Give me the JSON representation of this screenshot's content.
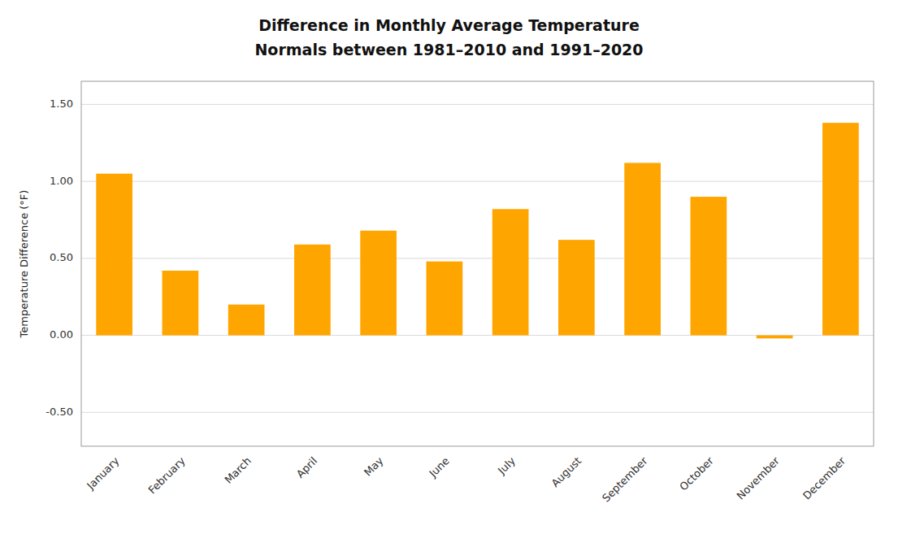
{
  "chart_data": {
    "type": "bar",
    "title": "Difference in Monthly Average Temperature",
    "subtitle": "Normals between 1981–2010 and 1991–2020",
    "y_label": "Temperature Difference (°F)",
    "categories": [
      "January",
      "February",
      "March",
      "April",
      "May",
      "June",
      "July",
      "August",
      "September",
      "October",
      "November",
      "December"
    ],
    "values": [
      1.05,
      0.42,
      0.2,
      0.59,
      0.68,
      0.48,
      0.82,
      0.62,
      1.12,
      0.9,
      -0.02,
      1.38
    ],
    "color": "#FFA500",
    "ylim": [
      -0.72,
      1.65
    ],
    "yticks": [
      {
        "value": -0.5,
        "label": "-0.50"
      },
      {
        "value": 0,
        "label": "0.00"
      },
      {
        "value": 0.5,
        "label": "0.50"
      },
      {
        "value": 1,
        "label": "1.00"
      },
      {
        "value": 1.5,
        "label": "1.50"
      }
    ],
    "grid": true
  }
}
